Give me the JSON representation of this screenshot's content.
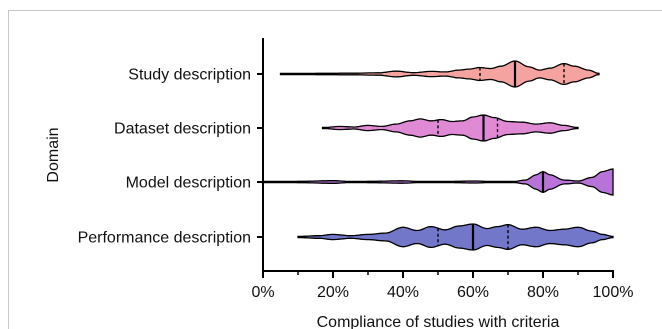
{
  "chart_data": {
    "type": "violin",
    "orientation": "horizontal",
    "ylabel": "Domain",
    "xlabel": "Compliance of studies with criteria",
    "xlim": [
      0,
      100
    ],
    "x_ticks": [
      "0%",
      "20%",
      "40%",
      "60%",
      "80%",
      "100%"
    ],
    "x_tick_values": [
      0,
      20,
      40,
      60,
      80,
      100
    ],
    "categories": [
      "Study description",
      "Dataset description",
      "Model description",
      "Performance description"
    ],
    "series": [
      {
        "category": "Study description",
        "color": "#f4a3a0",
        "range": [
          5,
          96
        ],
        "median": 72,
        "q1": 62,
        "q3": 86,
        "density": [
          [
            5,
            0.03
          ],
          [
            15,
            0.05
          ],
          [
            25,
            0.06
          ],
          [
            33,
            0.09
          ],
          [
            38,
            0.22
          ],
          [
            43,
            0.1
          ],
          [
            48,
            0.2
          ],
          [
            52,
            0.16
          ],
          [
            56,
            0.3
          ],
          [
            59,
            0.38
          ],
          [
            62,
            0.5
          ],
          [
            65,
            0.42
          ],
          [
            68,
            0.6
          ],
          [
            72,
            1.0
          ],
          [
            76,
            0.55
          ],
          [
            79,
            0.3
          ],
          [
            82,
            0.45
          ],
          [
            86,
            0.8
          ],
          [
            89,
            0.6
          ],
          [
            93,
            0.3
          ],
          [
            96,
            0.04
          ]
        ]
      },
      {
        "category": "Dataset description",
        "color": "#e08ad6",
        "range": [
          17,
          90
        ],
        "median": 63,
        "q1": 50,
        "q3": 67,
        "density": [
          [
            17,
            0.03
          ],
          [
            22,
            0.12
          ],
          [
            26,
            0.08
          ],
          [
            30,
            0.2
          ],
          [
            34,
            0.12
          ],
          [
            38,
            0.3
          ],
          [
            42,
            0.55
          ],
          [
            45,
            0.7
          ],
          [
            48,
            0.55
          ],
          [
            51,
            0.65
          ],
          [
            54,
            0.5
          ],
          [
            57,
            0.55
          ],
          [
            60,
            0.85
          ],
          [
            63,
            1.0
          ],
          [
            66,
            0.8
          ],
          [
            70,
            0.5
          ],
          [
            74,
            0.45
          ],
          [
            78,
            0.3
          ],
          [
            82,
            0.4
          ],
          [
            86,
            0.2
          ],
          [
            90,
            0.03
          ]
        ]
      },
      {
        "category": "Model description",
        "color": "#b873d8",
        "range": [
          0,
          100
        ],
        "median": 80,
        "q1": 80,
        "q3": 80,
        "density": [
          [
            0,
            0.04
          ],
          [
            10,
            0.05
          ],
          [
            20,
            0.1
          ],
          [
            25,
            0.04
          ],
          [
            30,
            0.05
          ],
          [
            40,
            0.09
          ],
          [
            45,
            0.04
          ],
          [
            55,
            0.05
          ],
          [
            60,
            0.08
          ],
          [
            65,
            0.04
          ],
          [
            72,
            0.05
          ],
          [
            75,
            0.15
          ],
          [
            78,
            0.55
          ],
          [
            80,
            0.8
          ],
          [
            82,
            0.55
          ],
          [
            86,
            0.15
          ],
          [
            90,
            0.08
          ],
          [
            94,
            0.35
          ],
          [
            97,
            0.8
          ],
          [
            100,
            1.0
          ]
        ]
      },
      {
        "category": "Performance description",
        "color": "#7377c9",
        "range": [
          10,
          100
        ],
        "median": 60,
        "q1": 50,
        "q3": 70,
        "density": [
          [
            10,
            0.04
          ],
          [
            16,
            0.1
          ],
          [
            20,
            0.2
          ],
          [
            25,
            0.1
          ],
          [
            30,
            0.2
          ],
          [
            35,
            0.3
          ],
          [
            40,
            0.75
          ],
          [
            44,
            0.5
          ],
          [
            48,
            0.8
          ],
          [
            52,
            0.55
          ],
          [
            56,
            0.85
          ],
          [
            60,
            1.0
          ],
          [
            64,
            0.65
          ],
          [
            67,
            0.8
          ],
          [
            70,
            0.95
          ],
          [
            74,
            0.6
          ],
          [
            78,
            0.75
          ],
          [
            82,
            0.5
          ],
          [
            86,
            0.6
          ],
          [
            90,
            0.75
          ],
          [
            94,
            0.45
          ],
          [
            97,
            0.2
          ],
          [
            100,
            0.04
          ]
        ]
      }
    ]
  }
}
